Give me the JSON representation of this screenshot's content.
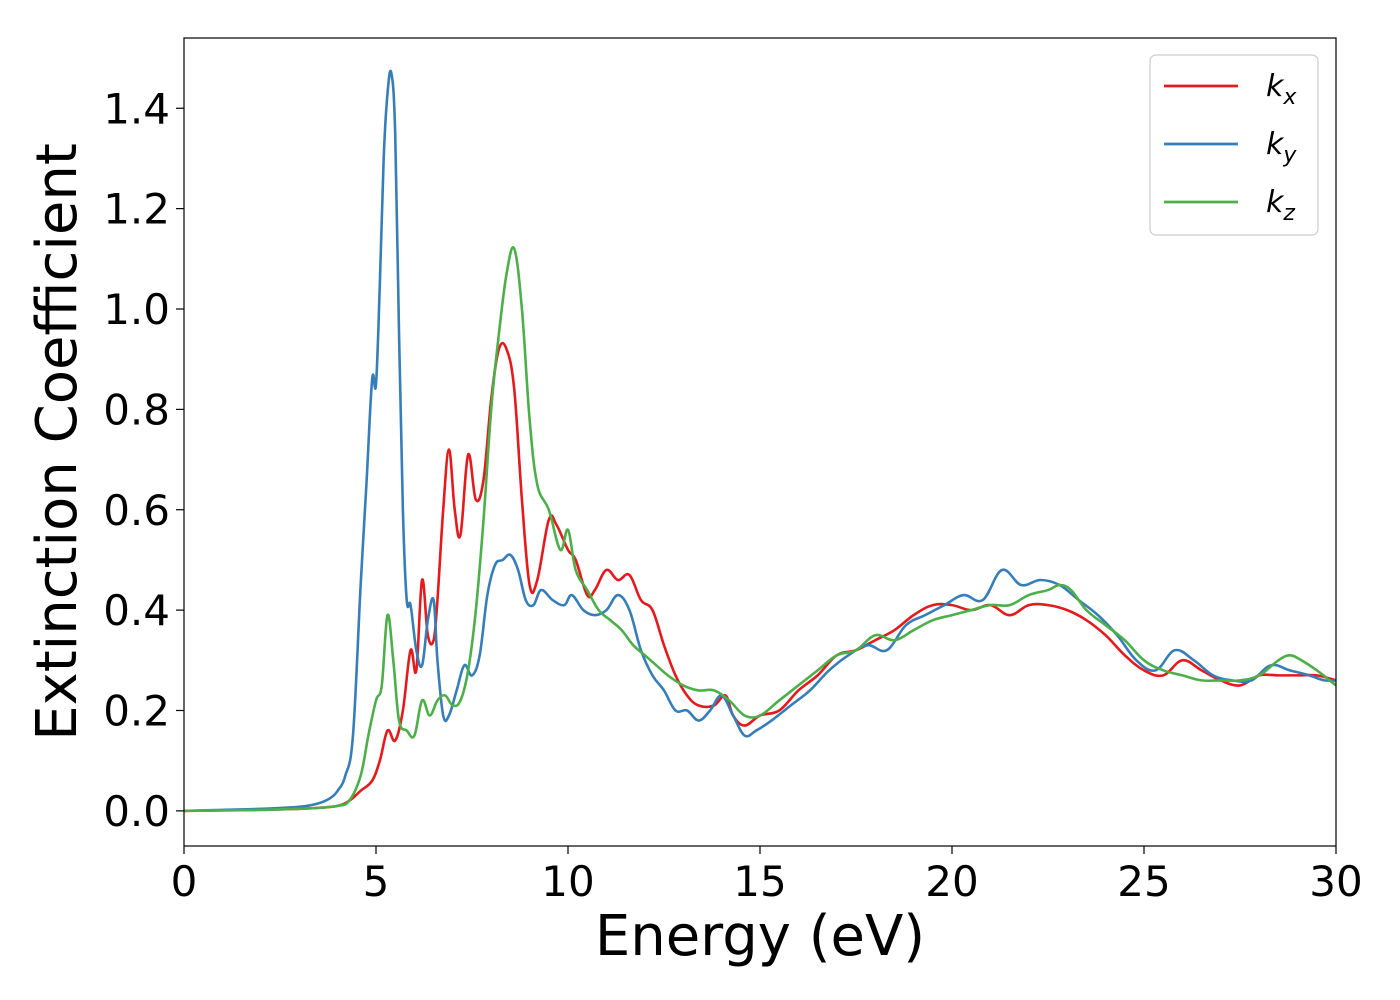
{
  "chart_data": {
    "type": "line",
    "title": "",
    "xlabel": "Energy (eV)",
    "ylabel": "Extinction Coefficient",
    "xlim": [
      0,
      30
    ],
    "ylim": [
      -0.07,
      1.54
    ],
    "xticks": [
      0,
      5,
      10,
      15,
      20,
      25,
      30
    ],
    "xtick_labels": [
      "0",
      "5",
      "10",
      "15",
      "20",
      "25",
      "30"
    ],
    "yticks": [
      0.0,
      0.2,
      0.4,
      0.6,
      0.8,
      1.0,
      1.2,
      1.4
    ],
    "ytick_labels": [
      "0.0",
      "0.2",
      "0.4",
      "0.6",
      "0.8",
      "1.0",
      "1.2",
      "1.4"
    ],
    "grid": false,
    "legend_position": "top-right",
    "series": [
      {
        "name": "k",
        "subscript": "x",
        "color": "#e41a1c",
        "x": [
          0,
          1,
          2,
          3,
          3.5,
          4,
          4.3,
          4.6,
          4.9,
          5.1,
          5.3,
          5.5,
          5.7,
          5.9,
          6.05,
          6.2,
          6.35,
          6.5,
          6.6,
          6.75,
          6.9,
          7.05,
          7.2,
          7.4,
          7.6,
          7.8,
          8.0,
          8.2,
          8.4,
          8.6,
          8.8,
          9.0,
          9.2,
          9.5,
          9.7,
          10.0,
          10.2,
          10.5,
          10.7,
          11.0,
          11.3,
          11.6,
          11.9,
          12.2,
          12.5,
          12.8,
          13.1,
          13.4,
          13.8,
          14.1,
          14.3,
          14.6,
          15.0,
          15.5,
          16.0,
          16.5,
          17.0,
          17.5,
          18.0,
          18.5,
          19.0,
          19.5,
          20.0,
          20.5,
          21.0,
          21.5,
          22.0,
          22.5,
          23.0,
          23.5,
          24.0,
          24.5,
          25.0,
          25.5,
          26.0,
          26.5,
          27.0,
          27.5,
          28.0,
          28.5,
          29.0,
          29.5,
          30.0
        ],
        "y": [
          0.0,
          0.001,
          0.002,
          0.004,
          0.006,
          0.01,
          0.02,
          0.04,
          0.06,
          0.1,
          0.16,
          0.14,
          0.2,
          0.32,
          0.28,
          0.46,
          0.35,
          0.34,
          0.42,
          0.6,
          0.72,
          0.6,
          0.55,
          0.71,
          0.62,
          0.66,
          0.82,
          0.92,
          0.92,
          0.84,
          0.62,
          0.45,
          0.46,
          0.58,
          0.57,
          0.52,
          0.5,
          0.43,
          0.44,
          0.48,
          0.46,
          0.47,
          0.42,
          0.4,
          0.33,
          0.27,
          0.23,
          0.21,
          0.21,
          0.23,
          0.19,
          0.17,
          0.19,
          0.2,
          0.24,
          0.27,
          0.31,
          0.32,
          0.34,
          0.36,
          0.39,
          0.41,
          0.41,
          0.4,
          0.41,
          0.39,
          0.41,
          0.41,
          0.4,
          0.38,
          0.35,
          0.31,
          0.28,
          0.27,
          0.3,
          0.28,
          0.26,
          0.25,
          0.27,
          0.27,
          0.27,
          0.27,
          0.26
        ]
      },
      {
        "name": "k",
        "subscript": "y",
        "color": "#377eb8",
        "x": [
          0,
          1,
          2,
          3,
          3.5,
          3.8,
          4.0,
          4.2,
          4.4,
          4.6,
          4.75,
          4.9,
          5.0,
          5.1,
          5.2,
          5.3,
          5.4,
          5.5,
          5.6,
          5.7,
          5.8,
          5.9,
          6.05,
          6.2,
          6.35,
          6.5,
          6.6,
          6.75,
          6.9,
          7.1,
          7.3,
          7.5,
          7.7,
          7.9,
          8.1,
          8.3,
          8.5,
          8.7,
          8.9,
          9.1,
          9.3,
          9.6,
          9.9,
          10.1,
          10.4,
          10.7,
          11.0,
          11.3,
          11.6,
          11.9,
          12.2,
          12.5,
          12.8,
          13.1,
          13.4,
          13.7,
          14.0,
          14.3,
          14.6,
          14.9,
          15.3,
          15.8,
          16.3,
          16.8,
          17.3,
          17.8,
          18.3,
          18.8,
          19.3,
          19.8,
          20.3,
          20.8,
          21.3,
          21.8,
          22.3,
          22.8,
          23.3,
          23.8,
          24.3,
          24.8,
          25.3,
          25.8,
          26.3,
          26.8,
          27.3,
          27.8,
          28.3,
          28.8,
          29.3,
          29.7,
          30.0
        ],
        "y": [
          0.0,
          0.002,
          0.004,
          0.008,
          0.015,
          0.025,
          0.04,
          0.07,
          0.15,
          0.45,
          0.65,
          0.86,
          0.85,
          1.05,
          1.3,
          1.43,
          1.47,
          1.35,
          0.95,
          0.6,
          0.42,
          0.41,
          0.32,
          0.29,
          0.38,
          0.42,
          0.3,
          0.19,
          0.19,
          0.24,
          0.29,
          0.27,
          0.31,
          0.43,
          0.49,
          0.5,
          0.51,
          0.48,
          0.42,
          0.41,
          0.44,
          0.42,
          0.41,
          0.43,
          0.4,
          0.39,
          0.4,
          0.43,
          0.4,
          0.32,
          0.27,
          0.24,
          0.2,
          0.2,
          0.18,
          0.2,
          0.23,
          0.19,
          0.15,
          0.16,
          0.18,
          0.21,
          0.24,
          0.28,
          0.31,
          0.33,
          0.32,
          0.37,
          0.39,
          0.41,
          0.43,
          0.42,
          0.48,
          0.45,
          0.46,
          0.45,
          0.42,
          0.39,
          0.35,
          0.3,
          0.28,
          0.32,
          0.3,
          0.27,
          0.26,
          0.26,
          0.29,
          0.28,
          0.27,
          0.26,
          0.26
        ]
      },
      {
        "name": "k",
        "subscript": "z",
        "color": "#4daf4a",
        "x": [
          0,
          1,
          2,
          3,
          3.5,
          4.0,
          4.3,
          4.6,
          4.8,
          5.0,
          5.15,
          5.3,
          5.45,
          5.6,
          5.8,
          6.0,
          6.2,
          6.4,
          6.6,
          6.8,
          7.0,
          7.2,
          7.4,
          7.6,
          7.8,
          8.0,
          8.2,
          8.4,
          8.6,
          8.8,
          9.0,
          9.2,
          9.5,
          9.8,
          10.0,
          10.2,
          10.5,
          10.8,
          11.1,
          11.4,
          11.7,
          12.0,
          12.3,
          12.6,
          13.0,
          13.4,
          13.8,
          14.2,
          14.6,
          15.0,
          15.5,
          16.0,
          16.5,
          17.0,
          17.5,
          18.0,
          18.5,
          19.0,
          19.5,
          20.0,
          20.5,
          21.0,
          21.5,
          22.0,
          22.5,
          22.8,
          23.1,
          23.5,
          24.0,
          24.5,
          25.0,
          25.5,
          26.0,
          26.5,
          27.0,
          27.5,
          28.0,
          28.5,
          28.8,
          29.1,
          29.5,
          30.0
        ],
        "y": [
          0.0,
          0.001,
          0.002,
          0.004,
          0.006,
          0.01,
          0.02,
          0.07,
          0.15,
          0.22,
          0.25,
          0.39,
          0.3,
          0.18,
          0.16,
          0.15,
          0.22,
          0.19,
          0.22,
          0.23,
          0.21,
          0.22,
          0.28,
          0.4,
          0.58,
          0.8,
          0.95,
          1.07,
          1.12,
          1.0,
          0.78,
          0.65,
          0.6,
          0.52,
          0.56,
          0.48,
          0.44,
          0.4,
          0.38,
          0.36,
          0.33,
          0.31,
          0.29,
          0.27,
          0.25,
          0.24,
          0.24,
          0.22,
          0.19,
          0.19,
          0.22,
          0.25,
          0.28,
          0.31,
          0.32,
          0.35,
          0.34,
          0.36,
          0.38,
          0.39,
          0.4,
          0.41,
          0.41,
          0.43,
          0.44,
          0.45,
          0.44,
          0.4,
          0.37,
          0.34,
          0.3,
          0.28,
          0.27,
          0.26,
          0.26,
          0.26,
          0.27,
          0.3,
          0.31,
          0.3,
          0.28,
          0.25
        ]
      }
    ]
  }
}
